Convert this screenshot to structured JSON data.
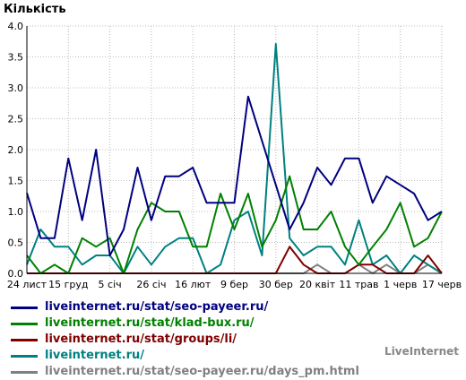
{
  "chart_data": {
    "type": "line",
    "ylabel": "Кількість",
    "ylim": [
      0,
      4
    ],
    "yticks": [
      "0.0",
      "0.5",
      "1.0",
      "1.5",
      "2.0",
      "2.5",
      "3.0",
      "3.5",
      "4.0"
    ],
    "xtick_labels": [
      "24 лист",
      "15 груд",
      "5 січ",
      "26 січ",
      "16 лют",
      "9 бер",
      "30 бер",
      "20 квіт",
      "11 трав",
      "1 черв",
      "17 черв"
    ],
    "xtick_index": [
      0,
      3,
      6,
      9,
      12,
      15,
      18,
      21,
      24,
      27,
      30
    ],
    "grid": true,
    "legend_position": "bottom-left",
    "series": [
      {
        "name": "liveinternet.ru/stat/seo-payeer.ru/",
        "color": "#000080",
        "values": [
          1.3,
          0.57,
          0.57,
          1.86,
          0.86,
          2.0,
          0.29,
          0.71,
          1.71,
          0.86,
          1.57,
          1.57,
          1.71,
          1.14,
          1.14,
          1.14,
          2.86,
          2.14,
          1.43,
          0.71,
          1.14,
          1.71,
          1.43,
          1.86,
          1.86,
          1.14,
          1.57,
          1.43,
          1.29,
          0.86,
          1.0
        ]
      },
      {
        "name": "liveinternet.ru/stat/klad-bux.ru/",
        "color": "#008000",
        "values": [
          0.29,
          0.0,
          0.14,
          0.0,
          0.57,
          0.43,
          0.57,
          0.0,
          0.71,
          1.14,
          1.0,
          1.0,
          0.43,
          0.43,
          1.29,
          0.71,
          1.29,
          0.43,
          0.86,
          1.57,
          0.71,
          0.71,
          1.0,
          0.43,
          0.14,
          0.43,
          0.71,
          1.14,
          0.43,
          0.57,
          1.0
        ]
      },
      {
        "name": "liveinternet.ru/stat/groups/li/",
        "color": "#800000",
        "values": [
          0.0,
          0.0,
          0.0,
          0.0,
          0.0,
          0.0,
          0.0,
          0.0,
          0.0,
          0.0,
          0.0,
          0.0,
          0.0,
          0.0,
          0.0,
          0.0,
          0.0,
          0.0,
          0.0,
          0.43,
          0.14,
          0.0,
          0.0,
          0.0,
          0.14,
          0.14,
          0.0,
          0.0,
          0.0,
          0.29,
          0.0
        ]
      },
      {
        "name": "liveinternet.ru/",
        "color": "#008080",
        "values": [
          0.14,
          0.71,
          0.43,
          0.43,
          0.14,
          0.29,
          0.29,
          0.0,
          0.43,
          0.14,
          0.43,
          0.57,
          0.57,
          0.0,
          0.14,
          0.86,
          1.0,
          0.29,
          3.71,
          0.57,
          0.29,
          0.43,
          0.43,
          0.14,
          0.86,
          0.14,
          0.29,
          0.0,
          0.29,
          0.14,
          0.0
        ]
      },
      {
        "name": "liveinternet.ru/stat/seo-payeer.ru/days_pm.html",
        "color": "#808080",
        "values": [
          0.0,
          0.0,
          0.0,
          0.0,
          0.0,
          0.0,
          0.0,
          0.0,
          0.0,
          0.0,
          0.0,
          0.0,
          0.0,
          0.0,
          0.0,
          0.0,
          0.0,
          0.0,
          0.0,
          0.0,
          0.0,
          0.14,
          0.0,
          0.0,
          0.14,
          0.0,
          0.14,
          0.0,
          0.0,
          0.14,
          0.0
        ]
      }
    ]
  },
  "brand": "LiveInternet"
}
